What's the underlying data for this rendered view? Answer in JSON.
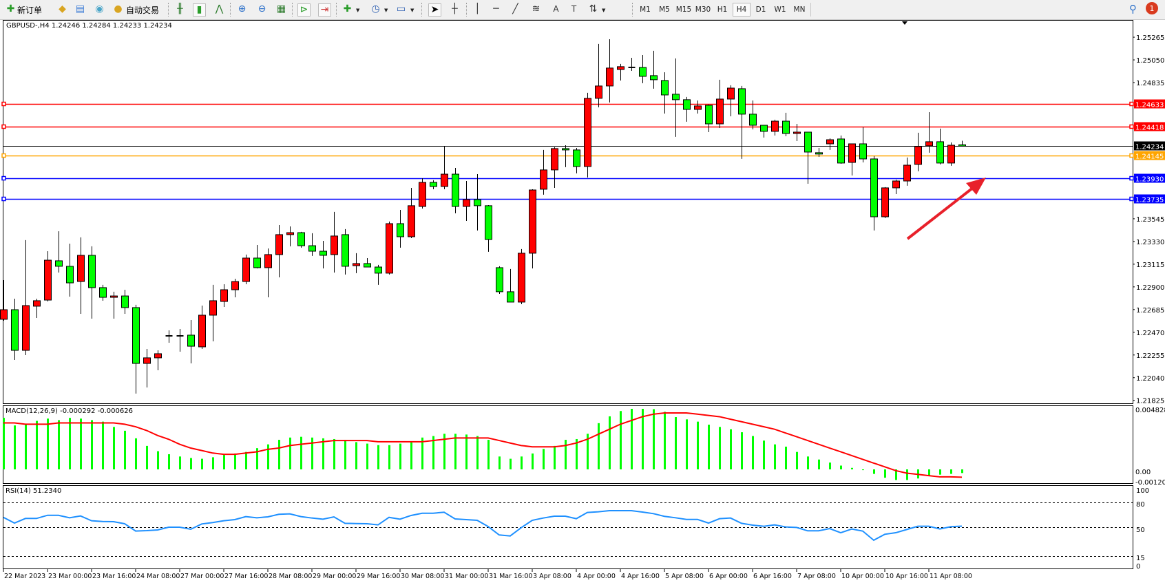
{
  "toolbar": {
    "new_order_label": "新订单",
    "autotrade_label": "自动交易",
    "icons": [
      "new-order-icon",
      "market-watch-icon",
      "navigator-icon",
      "signals-icon",
      "autotrade-icon",
      "bar-chart-icon",
      "candlestick-icon",
      "line-chart-icon",
      "zoom-in-icon",
      "zoom-out-icon",
      "tile-windows-icon",
      "auto-scroll-icon",
      "chart-shift-icon",
      "indicators-icon",
      "periods-clock-icon",
      "templates-icon",
      "cursor-icon",
      "crosshair-icon",
      "vertical-line-icon",
      "horizontal-line-icon",
      "trendline-icon",
      "fibonacci-icon",
      "text-icon",
      "text-label-icon",
      "arrows-icon"
    ],
    "timeframes": [
      "M1",
      "M5",
      "M15",
      "M30",
      "H1",
      "H4",
      "D1",
      "W1",
      "MN"
    ],
    "active_timeframe": "H4",
    "notification_count": "1"
  },
  "chart": {
    "header": "GBPUSD-,H4  1.24246 1.24284 1.24233 1.24234",
    "colors": {
      "bull": "#ff0000",
      "bear": "#00ff00",
      "outline": "#000000",
      "macd_hist": "#00ff00",
      "macd_signal": "#ff0000",
      "rsi": "#1e90ff",
      "arrow": "#e8202a"
    },
    "price_ticks": [
      "1.25265",
      "1.25050",
      "1.24835",
      "1.23545",
      "1.23330",
      "1.23115",
      "1.22900",
      "1.22685",
      "1.22470",
      "1.22255",
      "1.22040",
      "1.21825"
    ],
    "levels": [
      {
        "price": "1.24633",
        "color": "#ff0000"
      },
      {
        "price": "1.24418",
        "color": "#ff0000"
      },
      {
        "price": "1.24234",
        "color": "#000000"
      },
      {
        "price": "1.24145",
        "color": "#ffa500"
      },
      {
        "price": "1.23930",
        "color": "#0000ff"
      },
      {
        "price": "1.23735",
        "color": "#0000ff"
      }
    ],
    "date_labels": [
      "22 Mar 2023",
      "23 Mar 00:00",
      "23 Mar 16:00",
      "24 Mar 08:00",
      "27 Mar 00:00",
      "27 Mar 16:00",
      "28 Mar 08:00",
      "29 Mar 00:00",
      "29 Mar 16:00",
      "30 Mar 08:00",
      "31 Mar 00:00",
      "31 Mar 16:00",
      "3 Apr 08:00",
      "4 Apr 00:00",
      "4 Apr 16:00",
      "5 Apr 08:00",
      "6 Apr 00:00",
      "6 Apr 16:00",
      "7 Apr 08:00",
      "10 Apr 00:00",
      "10 Apr 16:00",
      "11 Apr 08:00"
    ]
  },
  "chart_data": [
    {
      "type": "candlestick",
      "symbol": "GBPUSD-",
      "timeframe": "H4",
      "ylim": [
        1.21825,
        1.25265
      ],
      "ohlc": [
        [
          1.22593,
          1.22964,
          1.2258,
          1.22684
        ],
        [
          1.22684,
          1.22788,
          1.22208,
          1.22299
        ],
        [
          1.22299,
          1.23343,
          1.22254,
          1.22723
        ],
        [
          1.22717,
          1.22788,
          1.22606,
          1.22769
        ],
        [
          1.22775,
          1.23238,
          1.22762,
          1.23153
        ],
        [
          1.23147,
          1.23427,
          1.23036,
          1.23095
        ],
        [
          1.23095,
          1.2331,
          1.22808,
          1.22938
        ],
        [
          1.22951,
          1.23369,
          1.22645,
          1.23199
        ],
        [
          1.23199,
          1.23284,
          1.22599,
          1.22893
        ],
        [
          1.22893,
          1.22919,
          1.22769,
          1.22801
        ],
        [
          1.22801,
          1.22854,
          1.22599,
          1.22814
        ],
        [
          1.22814,
          1.22873,
          1.22645,
          1.22704
        ],
        [
          1.22704,
          1.2273,
          1.21889,
          1.22175
        ],
        [
          1.22175,
          1.22312,
          1.21947,
          1.22228
        ],
        [
          1.22228,
          1.22299,
          1.2211,
          1.22267
        ],
        [
          1.22436,
          1.22488,
          1.22371,
          1.22436
        ],
        [
          1.22436,
          1.22501,
          1.22286,
          1.22436
        ],
        [
          1.22443,
          1.22586,
          1.22175,
          1.22338
        ],
        [
          1.22332,
          1.22723,
          1.22312,
          1.22632
        ],
        [
          1.22632,
          1.22919,
          1.22384,
          1.22769
        ],
        [
          1.22762,
          1.22925,
          1.2271,
          1.22873
        ],
        [
          1.22873,
          1.22977,
          1.22801,
          1.22951
        ],
        [
          1.22951,
          1.23206,
          1.22925,
          1.23173
        ],
        [
          1.23173,
          1.23297,
          1.23075,
          1.23082
        ],
        [
          1.23082,
          1.23264,
          1.22801,
          1.23206
        ],
        [
          1.23206,
          1.23486,
          1.2299,
          1.23395
        ],
        [
          1.23395,
          1.23473,
          1.23284,
          1.23414
        ],
        [
          1.23414,
          1.23421,
          1.23271,
          1.2329
        ],
        [
          1.2329,
          1.23408,
          1.23193,
          1.23238
        ],
        [
          1.23238,
          1.23336,
          1.23075,
          1.23199
        ],
        [
          1.23206,
          1.2361,
          1.23036,
          1.23382
        ],
        [
          1.23395,
          1.23447,
          1.23017,
          1.23095
        ],
        [
          1.23101,
          1.23219,
          1.2303,
          1.23121
        ],
        [
          1.23121,
          1.23173,
          1.23088,
          1.23088
        ],
        [
          1.23088,
          1.23108,
          1.22919,
          1.2303
        ],
        [
          1.2303,
          1.23519,
          1.23017,
          1.23499
        ],
        [
          1.23499,
          1.23629,
          1.23271,
          1.23375
        ],
        [
          1.23375,
          1.23838,
          1.23362,
          1.23669
        ],
        [
          1.23662,
          1.23929,
          1.23642,
          1.2389
        ],
        [
          1.2389,
          1.2391,
          1.23825,
          1.23851
        ],
        [
          1.23851,
          1.24229,
          1.23825,
          1.23968
        ],
        [
          1.23968,
          1.24027,
          1.23597,
          1.23662
        ],
        [
          1.23662,
          1.23903,
          1.23525,
          1.23727
        ],
        [
          1.23727,
          1.23968,
          1.23434,
          1.23669
        ],
        [
          1.23669,
          1.23675,
          1.23232,
          1.23349
        ],
        [
          1.23082,
          1.23095,
          1.22834,
          1.22854
        ],
        [
          1.22854,
          1.23069,
          1.22756,
          1.22756
        ],
        [
          1.22756,
          1.23258,
          1.22736,
          1.23219
        ],
        [
          1.23219,
          1.23825,
          1.23075,
          1.23818
        ],
        [
          1.23825,
          1.24197,
          1.23773,
          1.24008
        ],
        [
          1.24008,
          1.24223,
          1.23838,
          1.2421
        ],
        [
          1.2421,
          1.24242,
          1.24034,
          1.24197
        ],
        [
          1.24197,
          1.24216,
          1.23975,
          1.2404
        ],
        [
          1.2404,
          1.24738,
          1.23936,
          1.24686
        ],
        [
          1.24686,
          1.25201,
          1.24601,
          1.24803
        ],
        [
          1.24803,
          1.25246,
          1.24647,
          1.24973
        ],
        [
          1.24959,
          1.25012,
          1.24855,
          1.24986
        ],
        [
          1.24979,
          1.2507,
          1.24946,
          1.24979
        ],
        [
          1.24979,
          1.25096,
          1.24829,
          1.24894
        ],
        [
          1.24901,
          1.25136,
          1.24777,
          1.24862
        ],
        [
          1.24855,
          1.24933,
          1.24542,
          1.24718
        ],
        [
          1.24725,
          1.25064,
          1.24321,
          1.24673
        ],
        [
          1.24673,
          1.24699,
          1.24464,
          1.24581
        ],
        [
          1.24581,
          1.24666,
          1.24542,
          1.24614
        ],
        [
          1.2462,
          1.24627,
          1.24366,
          1.24444
        ],
        [
          1.24444,
          1.24862,
          1.24405,
          1.24679
        ],
        [
          1.24679,
          1.2481,
          1.24516,
          1.24783
        ],
        [
          1.24777,
          1.24803,
          1.24112,
          1.24536
        ],
        [
          1.24536,
          1.24666,
          1.24392,
          1.24431
        ],
        [
          1.24431,
          1.24431,
          1.24314,
          1.24373
        ],
        [
          1.24373,
          1.24484,
          1.24334,
          1.2447
        ],
        [
          1.2447,
          1.24549,
          1.24327,
          1.24353
        ],
        [
          1.24353,
          1.24444,
          1.24281,
          1.24366
        ],
        [
          1.24366,
          1.24366,
          1.23877,
          1.24177
        ],
        [
          1.24171,
          1.24216,
          1.24131,
          1.24158
        ],
        [
          1.24255,
          1.24307,
          1.24197,
          1.24294
        ],
        [
          1.24301,
          1.24334,
          1.24066,
          1.24073
        ],
        [
          1.24079,
          1.24255,
          1.23955,
          1.24255
        ],
        [
          1.24255,
          1.24412,
          1.24079,
          1.24112
        ],
        [
          1.24112,
          1.24138,
          1.23434,
          1.23564
        ],
        [
          1.23564,
          1.23845,
          1.23551,
          1.23838
        ],
        [
          1.23838,
          1.23916,
          1.23779,
          1.23903
        ],
        [
          1.23903,
          1.24125,
          1.23858,
          1.24053
        ],
        [
          1.2406,
          1.2436,
          1.23995,
          1.24229
        ],
        [
          1.24236,
          1.24555,
          1.24171,
          1.24275
        ],
        [
          1.24275,
          1.24399,
          1.2406,
          1.24073
        ],
        [
          1.24073,
          1.24268,
          1.24047,
          1.24242
        ],
        [
          1.24246,
          1.24284,
          1.24233,
          1.24234
        ]
      ]
    },
    {
      "type": "bar+line",
      "title": "MACD(12,26,9) -0.000292 -0.000626",
      "ylim": [
        -0.001201,
        0.004828
      ],
      "y_ticks": [
        "0.004828",
        "0.00",
        "-0.001201"
      ],
      "histogram": [
        0.004107,
        0.003503,
        0.003624,
        0.003866,
        0.004047,
        0.003926,
        0.004107,
        0.004047,
        0.003926,
        0.003805,
        0.003382,
        0.00308,
        0.002476,
        0.001872,
        0.00145,
        0.001208,
        0.001027,
        0.000906,
        0.000846,
        0.000966,
        0.001148,
        0.001268,
        0.001389,
        0.001691,
        0.001993,
        0.002356,
        0.002537,
        0.002597,
        0.002537,
        0.002476,
        0.002416,
        0.002356,
        0.002174,
        0.002054,
        0.001933,
        0.001933,
        0.002054,
        0.002174,
        0.002537,
        0.002658,
        0.002839,
        0.002839,
        0.002778,
        0.002658,
        0.002356,
        0.001027,
        0.000846,
        0.001027,
        0.001268,
        0.001631,
        0.001872,
        0.002356,
        0.002416,
        0.002839,
        0.003684,
        0.004228,
        0.004651,
        0.004828,
        0.004828,
        0.0048,
        0.00459,
        0.004168,
        0.003986,
        0.003805,
        0.003564,
        0.003382,
        0.003201,
        0.00296,
        0.002658,
        0.002295,
        0.001993,
        0.001812,
        0.001389,
        0.001027,
        0.000785,
        0.000544,
        0.000302,
        0.000121,
        -6e-05,
        -0.000362,
        -0.000664,
        -0.000846,
        -0.000846,
        -0.000725,
        -0.000483,
        -0.00042,
        -0.00036,
        -0.000292
      ],
      "signal": [
        0.0037,
        0.0037,
        0.0036,
        0.0036,
        0.0036,
        0.0037,
        0.0037,
        0.0037,
        0.0037,
        0.0037,
        0.0037,
        0.0036,
        0.0034,
        0.0031,
        0.0027,
        0.0024,
        0.002,
        0.0017,
        0.0015,
        0.0013,
        0.0012,
        0.0012,
        0.0013,
        0.0014,
        0.0016,
        0.0017,
        0.0019,
        0.002,
        0.0021,
        0.0022,
        0.0023,
        0.0023,
        0.0023,
        0.0023,
        0.0022,
        0.0022,
        0.0022,
        0.0022,
        0.0022,
        0.0023,
        0.0024,
        0.0025,
        0.0025,
        0.0025,
        0.0025,
        0.0023,
        0.0021,
        0.0019,
        0.0018,
        0.0018,
        0.0018,
        0.0019,
        0.0021,
        0.0024,
        0.0028,
        0.0032,
        0.0036,
        0.0039,
        0.0042,
        0.0044,
        0.0045,
        0.0045,
        0.0045,
        0.0044,
        0.0043,
        0.0042,
        0.004,
        0.0038,
        0.0036,
        0.0034,
        0.0032,
        0.0029,
        0.0026,
        0.0023,
        0.002,
        0.0017,
        0.0014,
        0.0011,
        0.0008,
        0.0005,
        0.0002,
        -0.0001,
        -0.0003,
        -0.0004,
        -0.0005,
        -0.0006,
        -0.0006,
        -0.000626
      ]
    },
    {
      "type": "line",
      "title": "RSI(14) 51.2340",
      "ylim": [
        0,
        100
      ],
      "y_ticks": [
        "100",
        "80",
        "50",
        "15",
        "0"
      ],
      "levels": [
        80,
        50,
        15
      ],
      "values": [
        61.9,
        55,
        60.6,
        60.6,
        64.4,
        64.4,
        61.4,
        63.6,
        57.8,
        56.9,
        56.7,
        54.2,
        45.3,
        45.8,
        46.7,
        50,
        50,
        47.5,
        53.9,
        55.6,
        57.8,
        59.2,
        62.8,
        61.4,
        62.5,
        65.6,
        66.1,
        62.8,
        61.1,
        59.7,
        62.5,
        54.7,
        54.4,
        54.2,
        52.8,
        61.9,
        59.7,
        64.2,
        66.9,
        66.9,
        68.1,
        60,
        59.2,
        58.3,
        50.8,
        40.6,
        39.4,
        49.4,
        58.3,
        61.1,
        63.3,
        63.3,
        60.3,
        67.8,
        68.6,
        70,
        70,
        70,
        68.3,
        66.4,
        63.1,
        61.4,
        59.4,
        59.4,
        55,
        60.3,
        61.1,
        54.7,
        52.5,
        51.1,
        52.8,
        50.3,
        49.7,
        45.6,
        45.6,
        48.3,
        43.3,
        47.8,
        45.3,
        34.2,
        41.4,
        43.3,
        47.2,
        51.1,
        51.1,
        47.8,
        50.6,
        51.234
      ]
    }
  ]
}
